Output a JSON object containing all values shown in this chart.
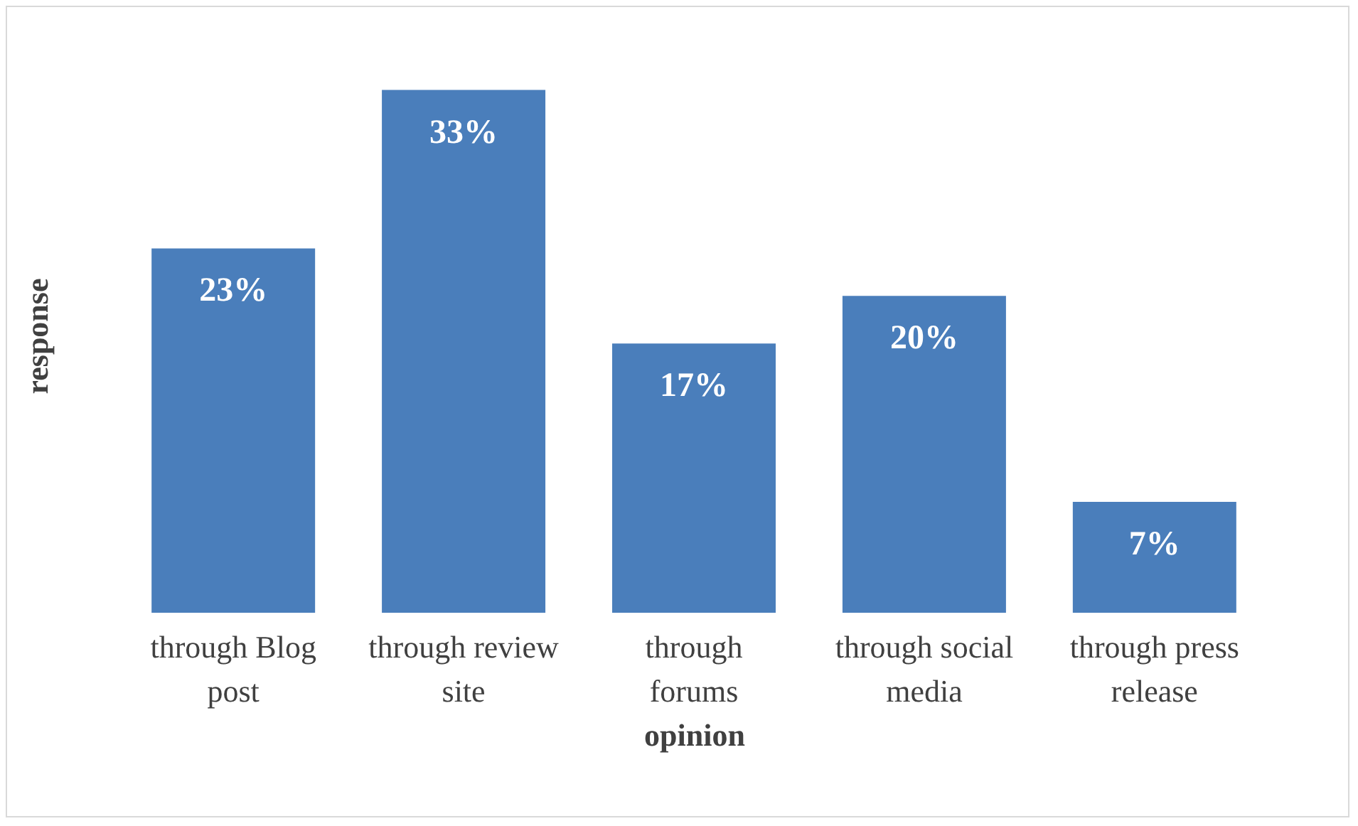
{
  "chart_data": {
    "type": "bar",
    "xlabel": "opinion",
    "ylabel": "response",
    "categories": [
      "through Blog post",
      "through review site",
      "through forums",
      "through social media",
      "through press release"
    ],
    "values": [
      23,
      33,
      17,
      20,
      7
    ],
    "value_labels": [
      "23%",
      "33%",
      "17%",
      "20%",
      "7%"
    ],
    "color": "#4a7ebb"
  }
}
